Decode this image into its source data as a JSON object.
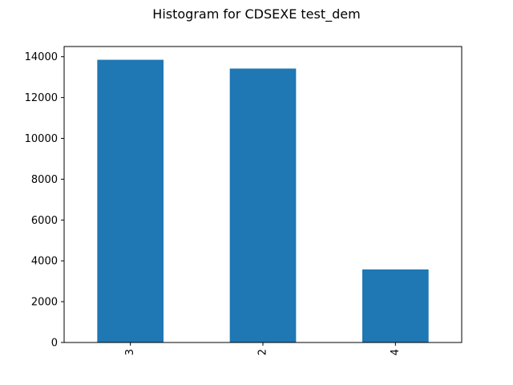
{
  "colors": {
    "bar": "#1f77b4",
    "axis": "#000000",
    "background": "#ffffff"
  },
  "chart_data": {
    "type": "bar",
    "title": "Histogram for CDSEXE test_dem",
    "xlabel": "",
    "ylabel": "",
    "categories": [
      "3",
      "2",
      "4"
    ],
    "values": [
      13850,
      13420,
      3580
    ],
    "ylim": [
      0,
      14500
    ],
    "yticks": [
      0,
      2000,
      4000,
      6000,
      8000,
      10000,
      12000,
      14000
    ],
    "ytick_labels": [
      "0",
      "2000",
      "4000",
      "6000",
      "8000",
      "10000",
      "12000",
      "14000"
    ],
    "grid": false,
    "legend": "none",
    "xtick_rotation": "vertical"
  }
}
